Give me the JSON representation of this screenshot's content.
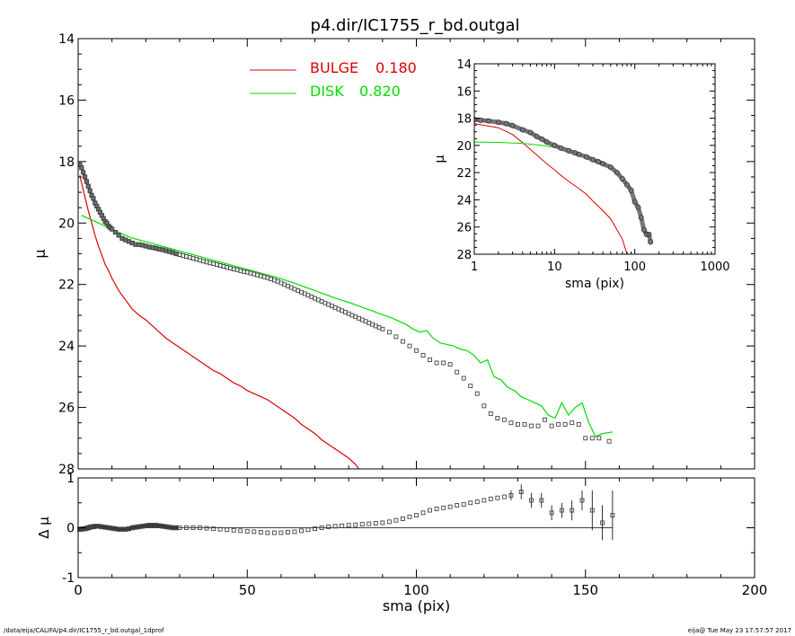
{
  "chart_data": [
    {
      "type": "scatter",
      "title": "p4.dir/IC1755_r_bd.outgal",
      "xlabel": "",
      "ylabel": "μ",
      "xlim": [
        0,
        200
      ],
      "ylim": [
        28,
        14
      ],
      "y_inverted": true,
      "yticks": [
        14,
        16,
        18,
        20,
        22,
        24,
        26,
        28
      ],
      "legend": [
        {
          "name": "BULGE",
          "value": "0.180",
          "color": "#dd0000"
        },
        {
          "name": "DISK",
          "value": "0.820",
          "color": "#00dd00"
        }
      ],
      "legend_placement": "top-center",
      "series": [
        {
          "name": "data",
          "marker": "square",
          "color": "#555555",
          "x": [
            0.5,
            1,
            1.5,
            2,
            2.5,
            3,
            3.5,
            4,
            4.5,
            5,
            5.5,
            6,
            6.5,
            7,
            7.5,
            8,
            8.5,
            9,
            9.5,
            10,
            11,
            12,
            13,
            14,
            15,
            16,
            17,
            18,
            19,
            20,
            21,
            22,
            23,
            24,
            25,
            26,
            27,
            28,
            29,
            30,
            31,
            32,
            33,
            34,
            35,
            36,
            37,
            38,
            39,
            40,
            41,
            42,
            43,
            44,
            45,
            46,
            47,
            48,
            49,
            50,
            51,
            52,
            53,
            54,
            55,
            56,
            57,
            58,
            59,
            60,
            61,
            62,
            63,
            64,
            65,
            66,
            67,
            68,
            69,
            70,
            71,
            72,
            73,
            74,
            75,
            76,
            77,
            78,
            79,
            80,
            81,
            82,
            83,
            84,
            85,
            86,
            87,
            88,
            89,
            90,
            92,
            94,
            96,
            98,
            100,
            102,
            104,
            106,
            108,
            110,
            112,
            114,
            116,
            118,
            120,
            122,
            124,
            126,
            128,
            130,
            132,
            134,
            136,
            138,
            140,
            142,
            144,
            146,
            148,
            150,
            152,
            154,
            157
          ],
          "y": [
            18.1,
            18.2,
            18.35,
            18.5,
            18.65,
            18.8,
            18.95,
            19.1,
            19.2,
            19.35,
            19.45,
            19.55,
            19.65,
            19.75,
            19.85,
            19.95,
            20.0,
            20.1,
            20.15,
            20.2,
            20.3,
            20.4,
            20.5,
            20.55,
            20.6,
            20.65,
            20.7,
            20.7,
            20.72,
            20.75,
            20.78,
            20.8,
            20.82,
            20.85,
            20.87,
            20.9,
            20.93,
            20.96,
            21.0,
            21.03,
            21.06,
            21.09,
            21.12,
            21.15,
            21.18,
            21.21,
            21.24,
            21.27,
            21.3,
            21.32,
            21.35,
            21.38,
            21.41,
            21.44,
            21.47,
            21.5,
            21.52,
            21.55,
            21.58,
            21.6,
            21.63,
            21.66,
            21.69,
            21.72,
            21.75,
            21.78,
            21.82,
            21.86,
            21.9,
            21.95,
            22.0,
            22.05,
            22.1,
            22.15,
            22.2,
            22.25,
            22.3,
            22.35,
            22.4,
            22.45,
            22.5,
            22.55,
            22.6,
            22.65,
            22.7,
            22.75,
            22.8,
            22.85,
            22.9,
            22.95,
            23.0,
            23.05,
            23.1,
            23.15,
            23.2,
            23.25,
            23.3,
            23.35,
            23.4,
            23.45,
            23.55,
            23.7,
            23.85,
            24.0,
            24.15,
            24.3,
            24.45,
            24.55,
            24.55,
            24.6,
            24.85,
            25.05,
            25.3,
            25.55,
            25.95,
            26.2,
            26.35,
            26.4,
            26.5,
            26.55,
            26.55,
            26.6,
            26.6,
            26.4,
            26.6,
            26.55,
            26.55,
            26.5,
            26.55,
            27.0,
            27.0,
            27.0,
            27.1
          ]
        },
        {
          "name": "BULGE",
          "type": "line",
          "color": "#dd0000",
          "x": [
            0.5,
            1,
            2,
            3,
            4,
            5,
            6,
            7,
            8,
            9,
            10,
            12,
            14,
            16,
            18,
            20,
            22,
            24,
            26,
            28,
            30,
            32,
            34,
            36,
            38,
            40,
            42,
            44,
            46,
            48,
            50,
            52,
            54,
            56,
            58,
            60,
            62,
            64,
            66,
            68,
            70,
            72,
            74,
            76,
            78,
            80,
            82,
            83
          ],
          "y": [
            18.45,
            18.7,
            19.15,
            19.6,
            20.0,
            20.4,
            20.75,
            21.05,
            21.35,
            21.55,
            21.8,
            22.2,
            22.5,
            22.8,
            23.0,
            23.15,
            23.35,
            23.55,
            23.75,
            23.9,
            24.05,
            24.2,
            24.35,
            24.5,
            24.65,
            24.8,
            24.9,
            25.05,
            25.2,
            25.3,
            25.45,
            25.55,
            25.65,
            25.75,
            25.9,
            26.05,
            26.2,
            26.35,
            26.55,
            26.7,
            26.85,
            27.05,
            27.2,
            27.35,
            27.5,
            27.65,
            27.85,
            28.0
          ]
        },
        {
          "name": "DISK",
          "type": "line",
          "color": "#00dd00",
          "x": [
            1,
            3,
            5,
            7,
            9,
            11,
            13,
            15,
            17,
            19,
            21,
            23,
            25,
            27,
            29,
            31,
            33,
            35,
            37,
            39,
            41,
            43,
            45,
            47,
            49,
            51,
            53,
            55,
            57,
            59,
            61,
            63,
            65,
            67,
            69,
            71,
            73,
            75,
            77,
            79,
            81,
            83,
            85,
            87,
            89,
            91,
            93,
            95,
            97,
            99,
            101,
            103,
            105,
            107,
            109,
            111,
            113,
            115,
            117,
            119,
            121,
            123,
            125,
            127,
            129,
            131,
            133,
            135,
            137,
            139,
            141,
            143,
            145,
            147,
            149,
            151,
            153,
            155,
            158
          ],
          "y": [
            19.75,
            19.85,
            19.95,
            20.05,
            20.15,
            20.25,
            20.35,
            20.45,
            20.52,
            20.58,
            20.64,
            20.7,
            20.76,
            20.82,
            20.88,
            20.94,
            21.0,
            21.06,
            21.12,
            21.18,
            21.24,
            21.3,
            21.36,
            21.42,
            21.48,
            21.54,
            21.6,
            21.66,
            21.72,
            21.78,
            21.85,
            21.92,
            22.0,
            22.08,
            22.16,
            22.24,
            22.32,
            22.4,
            22.48,
            22.55,
            22.62,
            22.7,
            22.78,
            22.86,
            22.94,
            23.02,
            23.1,
            23.2,
            23.3,
            23.45,
            23.55,
            23.5,
            23.75,
            23.9,
            23.95,
            24.0,
            24.1,
            24.15,
            24.3,
            24.55,
            24.45,
            25.0,
            25.1,
            25.35,
            25.45,
            25.65,
            25.75,
            25.85,
            25.95,
            26.25,
            26.35,
            25.85,
            26.25,
            26.0,
            25.85,
            26.5,
            26.95,
            26.85,
            26.8
          ]
        }
      ]
    },
    {
      "type": "scatter",
      "title": "",
      "xlabel": "sma (pix)",
      "ylabel": "μ",
      "xscale": "log",
      "xlim": [
        1,
        1000
      ],
      "ylim": [
        28,
        14
      ],
      "xticks": [
        1,
        10,
        100,
        1000
      ],
      "xtick_labels": [
        "1",
        "10",
        "100",
        "1000"
      ],
      "yticks": [
        14,
        16,
        18,
        20,
        22,
        24,
        26,
        28
      ],
      "series": [
        {
          "name": "data",
          "marker": "circle",
          "color": "#555555",
          "x": [
            1,
            1.2,
            1.5,
            2,
            2.5,
            3,
            4,
            5,
            6,
            7,
            8,
            10,
            12,
            15,
            18,
            20,
            25,
            30,
            35,
            40,
            50,
            60,
            70,
            80,
            90,
            100,
            110,
            120,
            130,
            140,
            150,
            157
          ],
          "y": [
            18.1,
            18.15,
            18.2,
            18.3,
            18.4,
            18.55,
            18.85,
            19.05,
            19.35,
            19.55,
            19.75,
            20.0,
            20.2,
            20.4,
            20.55,
            20.65,
            20.85,
            21.05,
            21.2,
            21.35,
            21.6,
            22.0,
            22.45,
            22.9,
            23.3,
            24.15,
            24.55,
            25.3,
            26.2,
            26.55,
            26.55,
            27.1
          ]
        },
        {
          "name": "BULGE",
          "type": "line",
          "color": "#dd0000",
          "x": [
            1,
            2,
            3,
            4,
            5,
            6,
            7,
            8,
            10,
            12,
            15,
            20,
            25,
            30,
            40,
            50,
            60,
            70,
            80
          ],
          "y": [
            18.4,
            18.7,
            19.2,
            19.8,
            20.3,
            20.7,
            21.05,
            21.35,
            21.8,
            22.2,
            22.65,
            23.15,
            23.6,
            24.1,
            24.8,
            25.4,
            26.2,
            26.9,
            28.0
          ]
        },
        {
          "name": "DISK",
          "type": "line",
          "color": "#00dd00",
          "x": [
            1,
            2,
            4,
            6,
            8,
            10,
            15,
            20,
            30
          ],
          "y": [
            19.75,
            19.78,
            19.85,
            19.95,
            20.05,
            20.15,
            20.4,
            20.6,
            20.9
          ]
        }
      ]
    },
    {
      "type": "scatter",
      "title": "",
      "xlabel": "sma (pix)",
      "ylabel": "Δ μ",
      "xlim": [
        0,
        200
      ],
      "ylim": [
        -1,
        1
      ],
      "xticks": [
        0,
        50,
        100,
        150,
        200
      ],
      "yticks": [
        -1,
        0,
        1
      ],
      "reference_line_y": 0,
      "series": [
        {
          "name": "residual",
          "marker": "square",
          "color": "#555555",
          "x": [
            0.5,
            1,
            1.5,
            2,
            2.5,
            3,
            3.5,
            4,
            4.5,
            5,
            6,
            7,
            8,
            9,
            10,
            11,
            12,
            13,
            14,
            15,
            16,
            17,
            18,
            19,
            20,
            21,
            22,
            23,
            24,
            25,
            26,
            27,
            28,
            29,
            30,
            32,
            34,
            36,
            38,
            40,
            42,
            44,
            46,
            48,
            50,
            52,
            54,
            56,
            58,
            60,
            62,
            64,
            66,
            68,
            70,
            72,
            74,
            76,
            78,
            80,
            82,
            84,
            86,
            88,
            90,
            92,
            94,
            96,
            98,
            100,
            102,
            104,
            106,
            108,
            110,
            112,
            114,
            116,
            118,
            120,
            122,
            124,
            126
          ],
          "y": [
            -0.03,
            -0.03,
            -0.02,
            -0.02,
            -0.01,
            0.0,
            0.01,
            0.02,
            0.02,
            0.03,
            0.03,
            0.02,
            0.01,
            0.0,
            -0.01,
            -0.02,
            -0.03,
            -0.03,
            -0.03,
            -0.02,
            0.0,
            0.01,
            0.02,
            0.03,
            0.04,
            0.05,
            0.05,
            0.05,
            0.04,
            0.03,
            0.02,
            0.01,
            0.0,
            0.0,
            0.0,
            0.0,
            0.0,
            0.0,
            -0.01,
            -0.02,
            -0.03,
            -0.04,
            -0.05,
            -0.06,
            -0.07,
            -0.08,
            -0.09,
            -0.1,
            -0.1,
            -0.1,
            -0.09,
            -0.08,
            -0.06,
            -0.04,
            -0.02,
            0.0,
            0.02,
            0.03,
            0.04,
            0.05,
            0.06,
            0.07,
            0.08,
            0.09,
            0.1,
            0.12,
            0.15,
            0.18,
            0.22,
            0.25,
            0.3,
            0.35,
            0.38,
            0.4,
            0.42,
            0.45,
            0.47,
            0.5,
            0.52,
            0.55,
            0.58,
            0.6,
            0.62
          ]
        },
        {
          "name": "residual-with-errors",
          "marker": "square",
          "color": "#555555",
          "x": [
            128,
            131,
            134,
            137,
            140,
            143,
            146,
            149,
            152,
            155,
            158
          ],
          "y": [
            0.65,
            0.72,
            0.55,
            0.55,
            0.3,
            0.35,
            0.35,
            0.55,
            0.35,
            0.1,
            0.25
          ],
          "err": [
            0.1,
            0.15,
            0.15,
            0.15,
            0.15,
            0.15,
            0.2,
            0.2,
            0.4,
            0.35,
            0.5
          ]
        }
      ]
    }
  ],
  "footer": {
    "left": "/data/eija/CALIFA/p4.dir/IC1755_r_bd.outgal_1dprof",
    "right": "eija@  Tue May 23 17:57:57 2017"
  }
}
